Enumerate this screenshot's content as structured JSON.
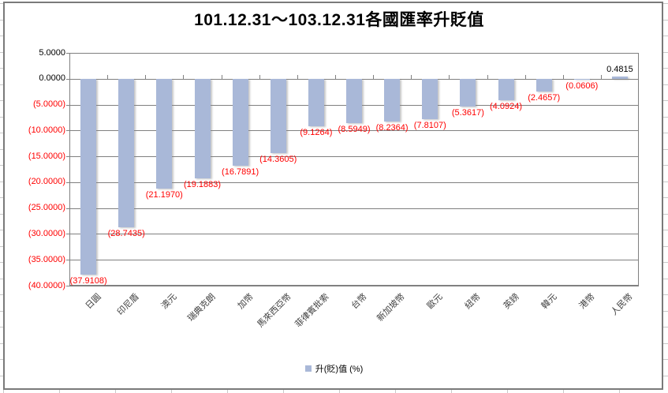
{
  "chart_data": {
    "type": "bar",
    "title": "101.12.31～103.12.31各國匯率升貶值",
    "categories": [
      "日圓",
      "印尼盾",
      "澳元",
      "瑞典克朗",
      "加幣",
      "馬來西亞幣",
      "菲律賓批索",
      "台幣",
      "新加坡幣",
      "歐元",
      "紐幣",
      "英鎊",
      "韓元",
      "港幣",
      "人民幣"
    ],
    "series": [
      {
        "name": "升(貶)值 (%)",
        "values": [
          -37.9108,
          -28.7435,
          -21.197,
          -19.1883,
          -16.7891,
          -14.3605,
          -9.1264,
          -8.5949,
          -8.2364,
          -7.8107,
          -5.3617,
          -4.0924,
          -2.4657,
          -0.0606,
          0.4815
        ]
      }
    ],
    "data_labels": [
      "(37.9108)",
      "(28.7435)",
      "(21.1970)",
      "(19.1883)",
      "(16.7891)",
      "(14.3605)",
      "(9.1264)",
      "(8.5949)",
      "(8.2364)",
      "(7.8107)",
      "(5.3617)",
      "(4.0924)",
      "(2.4657)",
      "(0.0606)",
      "0.4815"
    ],
    "ylim": [
      -40,
      5
    ],
    "y_tick_step": 5,
    "y_tick_labels": [
      "5.0000",
      "0.0000",
      "(5.0000)",
      "(10.0000)",
      "(15.0000)",
      "(20.0000)",
      "(25.0000)",
      "(30.0000)",
      "(35.0000)",
      "(40.0000)"
    ],
    "number_format": "accounting_4dp_negative_red_parentheses",
    "grid": true,
    "legend_position": "bottom",
    "xlabel": "",
    "ylabel": "",
    "colors": {
      "bar_fill": "#a9b8d8",
      "negative_text": "#ff0000",
      "positive_text": "#000000",
      "gridline": "#808080",
      "axis_text": "#3f3f3f",
      "chart_border": "#7a7a7a"
    }
  }
}
